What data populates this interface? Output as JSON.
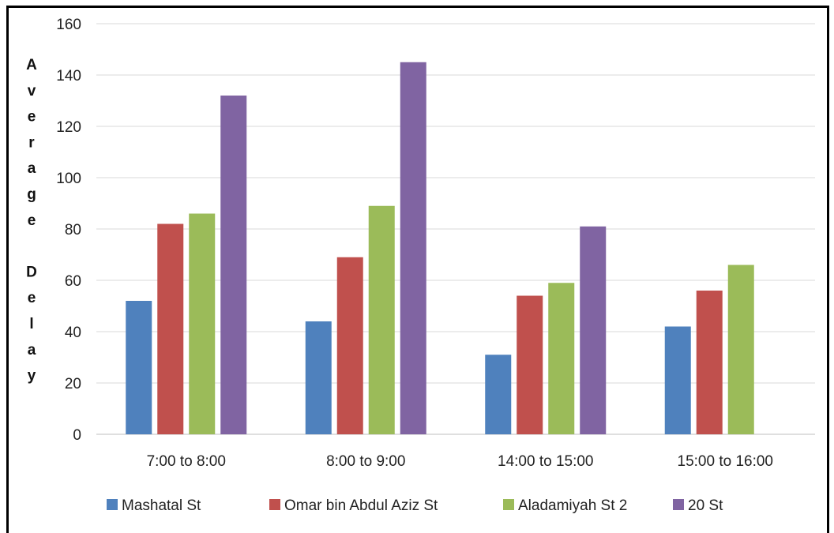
{
  "chart_data": {
    "type": "bar",
    "title": "",
    "xlabel": "",
    "ylabel": "Average Delay",
    "categories": [
      "7:00 to 8:00",
      "8:00 to 9:00",
      "14:00 to 15:00",
      "15:00 to 16:00"
    ],
    "series": [
      {
        "name": "Mashatal St",
        "color": "#4f81bd",
        "values": [
          52,
          44,
          31,
          42
        ]
      },
      {
        "name": "Omar bin Abdul Aziz St",
        "color": "#c0504d",
        "values": [
          82,
          69,
          54,
          56
        ]
      },
      {
        "name": "Aladamiyah St 2",
        "color": "#9bbb59",
        "values": [
          86,
          89,
          59,
          66
        ]
      },
      {
        "name": "20 St",
        "color": "#8064a2",
        "values": [
          132,
          145,
          81,
          null
        ]
      }
    ],
    "ylim": [
      0,
      160
    ],
    "yticks": [
      0,
      20,
      40,
      60,
      80,
      100,
      120,
      140,
      160
    ],
    "grid": true,
    "legend_position": "bottom"
  }
}
